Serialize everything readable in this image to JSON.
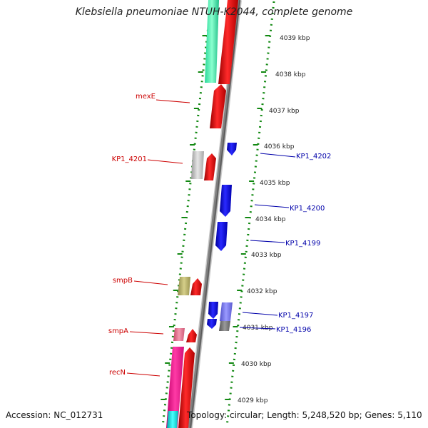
{
  "title": "Klebsiella pneumoniae NTUH-K2044, complete genome",
  "footer": {
    "accession": "Accession: NC_012731",
    "topology": "Topology: circular; Length: 5,248,520 bp; Genes: 5,110"
  },
  "ticks": [
    {
      "label": "4039 kbp"
    },
    {
      "label": "4038 kbp"
    },
    {
      "label": "4037 kbp"
    },
    {
      "label": "4036 kbp"
    },
    {
      "label": "4035 kbp"
    },
    {
      "label": "4034 kbp"
    },
    {
      "label": "4033 kbp"
    },
    {
      "label": "4032 kbp"
    },
    {
      "label": "4031 kbp"
    },
    {
      "label": "4030 kbp"
    },
    {
      "label": "4029 kbp"
    }
  ],
  "gene_labels": {
    "left": [
      "mexE",
      "KP1_4201",
      "smpB",
      "smpA",
      "recN"
    ],
    "right": [
      "KP1_4202",
      "KP1_4200",
      "KP1_4199",
      "KP1_4197",
      "KP1_4196"
    ]
  },
  "colors": {
    "forward_cds": "#ff0000",
    "reverse_cds": "#0000ff",
    "left_label": "#cc0000",
    "right_label": "#0000aa",
    "backbone": "#808080",
    "ruler": "#118811"
  }
}
